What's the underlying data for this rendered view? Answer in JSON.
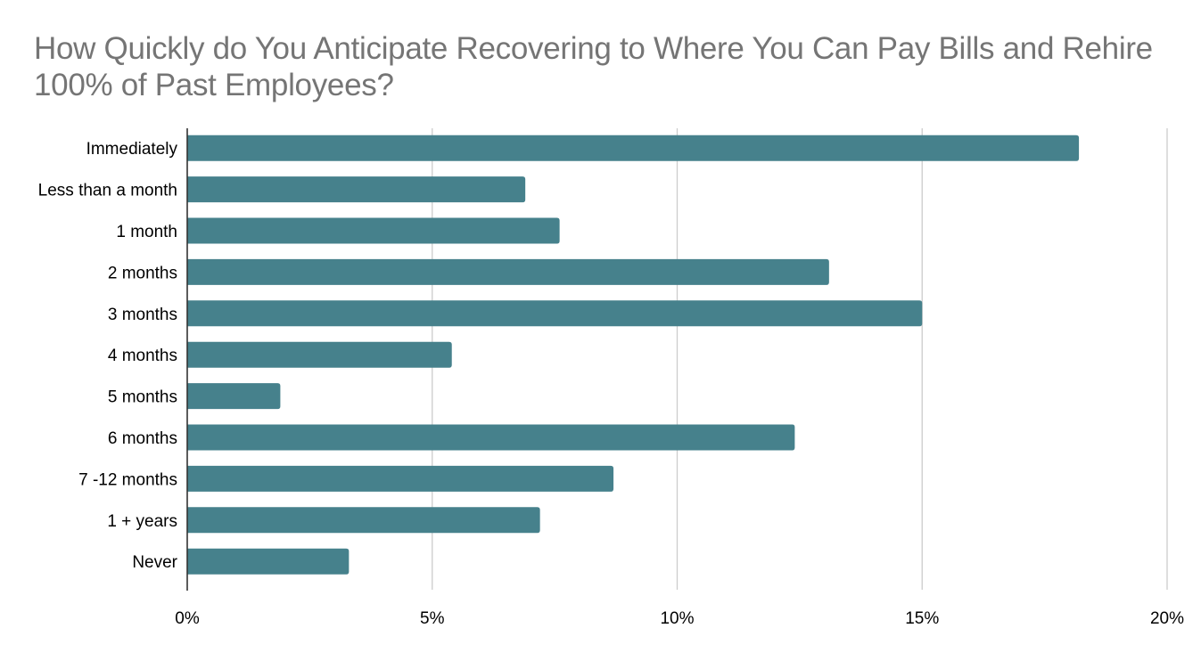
{
  "chart_data": {
    "type": "bar",
    "orientation": "horizontal",
    "title": "How Quickly do You Anticipate Recovering to Where You Can Pay Bills and Rehire 100% of Past Employees?",
    "xlabel": "",
    "ylabel": "",
    "categories": [
      "Immediately",
      "Less than a month",
      "1 month",
      "2 months",
      "3 months",
      "4 months",
      "5 months",
      "6 months",
      "7 -12 months",
      "1 + years",
      "Never"
    ],
    "values": [
      18.2,
      6.9,
      7.6,
      13.1,
      15.0,
      5.4,
      1.9,
      12.4,
      8.7,
      7.2,
      3.3
    ],
    "value_unit": "%",
    "xlim": [
      0,
      20
    ],
    "xticks": [
      0,
      5,
      10,
      15,
      20
    ],
    "xtick_labels": [
      "0%",
      "5%",
      "10%",
      "15%",
      "20%"
    ],
    "grid": true,
    "legend": "none",
    "colors": {
      "bar": "#46818c",
      "grid": "#cccccc",
      "axis": "#333333",
      "title": "#757575",
      "label": "#000000"
    }
  }
}
